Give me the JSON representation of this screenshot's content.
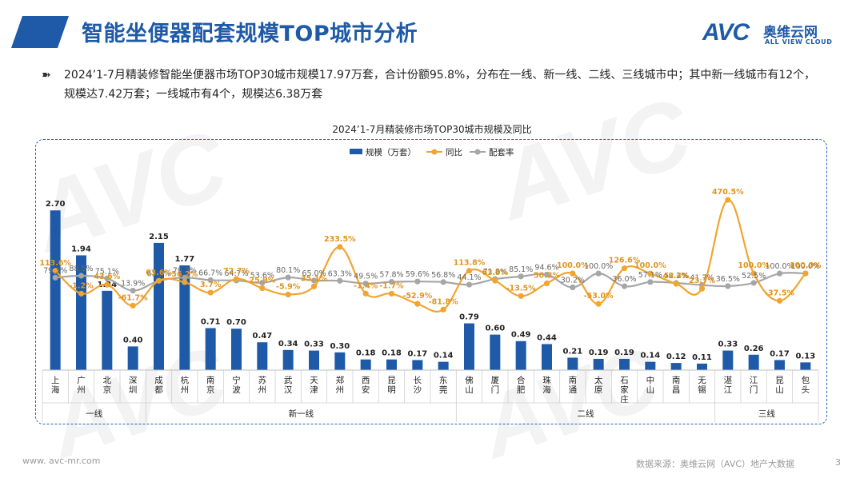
{
  "header": {
    "title": "智能坐便器配套规模TOP城市分析",
    "logo_avc": "AVC",
    "logo_cn": "奥维云网",
    "logo_en": "ALL VIEW CLOUD"
  },
  "bullet": {
    "icon": "double-arrow-icon",
    "text": "2024’1-7月精装修智能坐便器市场TOP30城市规模17.97万套，合计份额95.8%，分布在一线、新一线、二线、三线城市中；其中新一线城市有12个，规模达7.42万套；一线城市有4个，规模达6.38万套"
  },
  "chart_data": {
    "type": "bar",
    "title": "2024’1-7月精装修市场TOP30城市规模及同比",
    "categories": [
      "上海",
      "广州",
      "北京",
      "深圳",
      "成都",
      "杭州",
      "南京",
      "宁波",
      "苏州",
      "武汉",
      "天津",
      "郑州",
      "西安",
      "昆明",
      "长沙",
      "东莞",
      "佛山",
      "厦门",
      "合肥",
      "珠海",
      "南通",
      "太原",
      "石家庄",
      "中山",
      "南昌",
      "无锡",
      "湛江",
      "江门",
      "昆山",
      "包头"
    ],
    "groups": [
      {
        "name": "一线",
        "count": 4
      },
      {
        "name": "新一线",
        "count": 12
      },
      {
        "name": "二线",
        "count": 10
      },
      {
        "name": "三线",
        "count": 4
      }
    ],
    "series": [
      {
        "name": "规模（万套）",
        "type": "bar",
        "color": "#1e5aa8",
        "values": [
          2.7,
          1.94,
          1.34,
          0.4,
          2.15,
          1.77,
          0.71,
          0.7,
          0.47,
          0.34,
          0.33,
          0.3,
          0.18,
          0.18,
          0.17,
          0.14,
          0.79,
          0.6,
          0.49,
          0.44,
          0.21,
          0.19,
          0.19,
          0.14,
          0.12,
          0.11,
          0.33,
          0.26,
          0.17,
          0.13
        ]
      },
      {
        "name": "同比",
        "type": "line",
        "color": "#f0a531",
        "values": [
          113.6,
          -1.2,
          43.6,
          -61.7,
          63.6,
          56.2,
          3.7,
          72.7,
          25.9,
          -5.9,
          35.1,
          233.5,
          -1.4,
          -1.7,
          -52.9,
          -81.8,
          113.8,
          63.9,
          -13.5,
          50.2,
          100.0,
          -53.0,
          126.6,
          100.0,
          48.4,
          23.7,
          470.5,
          100.0,
          -37.5,
          100.0
        ],
        "labels": [
          "113.6%",
          "-1.2%",
          "43.6%",
          "-61.7%",
          "63.6%",
          "56.2%",
          "3.7%",
          "72.7%",
          "25.9%",
          "-5.9%",
          "35.1%",
          "233.5%",
          "-1.4%",
          "-1.7%",
          "-52.9%",
          "-81.8%",
          "113.8%",
          "63.9%",
          "-13.5%",
          "50.2%",
          "100.0%",
          "-53.0%",
          "126.6%",
          "100.0%",
          "48.4%",
          "23.7%",
          "470.5%",
          "100.0%",
          "-37.5%",
          "100.0%"
        ]
      },
      {
        "name": "配套率",
        "type": "line",
        "color": "#a6a6a6",
        "values": [
          79.3,
          88.5,
          75.1,
          13.9,
          63.2,
          79.3,
          66.7,
          64.7,
          53.6,
          80.1,
          65.0,
          63.3,
          49.5,
          57.8,
          59.6,
          56.8,
          44.1,
          71.8,
          85.1,
          94.6,
          30.2,
          100.0,
          36.0,
          57.1,
          52.2,
          41.7,
          36.5,
          52.5,
          100.0,
          100.0
        ],
        "labels": [
          "79.3%",
          "88.5%",
          "75.1%",
          "13.9%",
          "63.2%",
          "79.3%",
          "66.7%",
          "64.7%",
          "53.6%",
          "80.1%",
          "65.0%",
          "63.3%",
          "49.5%",
          "57.8%",
          "59.6%",
          "56.8%",
          "44.1%",
          "71.8%",
          "85.1%",
          "94.6%",
          "30.2%",
          "100.0%",
          "36.0%",
          "57.1%",
          "52.2%",
          "41.7%",
          "36.5%",
          "52.5%",
          "100.0%",
          "100.0%"
        ]
      }
    ],
    "bar_labels": [
      "2.70",
      "1.94",
      "1.34",
      "0.40",
      "2.15",
      "1.77",
      "0.71",
      "0.70",
      "0.47",
      "0.34",
      "0.33",
      "0.30",
      "0.18",
      "0.18",
      "0.17",
      "0.14",
      "0.79",
      "0.60",
      "0.49",
      "0.44",
      "0.21",
      "0.19",
      "0.19",
      "0.14",
      "0.12",
      "0.11",
      "0.33",
      "0.26",
      "0.17",
      "0.13"
    ],
    "legend_position": "top-center",
    "grid": false
  },
  "footer": {
    "website": "www. avc-mr.com",
    "source": "数据来源：奥维云网（AVC）地产大数据",
    "page": "3"
  }
}
